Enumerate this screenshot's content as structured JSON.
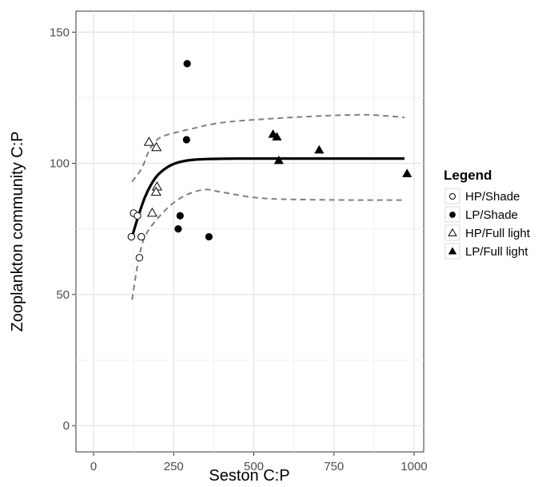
{
  "chart_data": {
    "type": "scatter",
    "xlabel": "Seston C:P",
    "ylabel": "Zooplankton community C:P",
    "xlim": [
      -55,
      1030
    ],
    "ylim": [
      -10,
      158
    ],
    "xticks": [
      0,
      250,
      500,
      750,
      1000
    ],
    "yticks": [
      0,
      50,
      100,
      150
    ],
    "grid": true,
    "legend": {
      "title": "Legend",
      "placement": "right",
      "entries": [
        {
          "label": "HP/Shade",
          "marker": "circle-open"
        },
        {
          "label": "LP/Shade",
          "marker": "circle-filled"
        },
        {
          "label": "HP/Full light",
          "marker": "triangle-open"
        },
        {
          "label": "LP/Full light",
          "marker": "triangle-filled"
        }
      ]
    },
    "series": [
      {
        "name": "HP/Shade",
        "marker": "circle-open",
        "points": [
          [
            118,
            72
          ],
          [
            125,
            81
          ],
          [
            137,
            80
          ],
          [
            143,
            64
          ],
          [
            149,
            72
          ]
        ]
      },
      {
        "name": "LP/Shade",
        "marker": "circle-filled",
        "points": [
          [
            292,
            138
          ],
          [
            290,
            109
          ],
          [
            270,
            80
          ],
          [
            264,
            75
          ],
          [
            360,
            72
          ]
        ]
      },
      {
        "name": "HP/Full light",
        "marker": "triangle-open",
        "points": [
          [
            173,
            108
          ],
          [
            196,
            106
          ],
          [
            198,
            91
          ],
          [
            195,
            89
          ],
          [
            183,
            81
          ]
        ]
      },
      {
        "name": "LP/Full light",
        "marker": "triangle-filled",
        "points": [
          [
            560,
            111
          ],
          [
            572,
            110
          ],
          [
            578,
            101
          ],
          [
            704,
            105
          ],
          [
            978,
            96
          ]
        ]
      }
    ],
    "fit_line": {
      "style": "solid",
      "color": "#000000",
      "points": [
        [
          120,
          72
        ],
        [
          140,
          80
        ],
        [
          160,
          87
        ],
        [
          180,
          92
        ],
        [
          200,
          95.5
        ],
        [
          230,
          98.5
        ],
        [
          260,
          100.2
        ],
        [
          300,
          101.2
        ],
        [
          350,
          101.6
        ],
        [
          450,
          101.8
        ],
        [
          600,
          101.8
        ],
        [
          800,
          101.8
        ],
        [
          970,
          101.8
        ]
      ]
    },
    "confidence_band": {
      "style": "dashed",
      "color": "#808080",
      "upper": [
        [
          120,
          93
        ],
        [
          150,
          98
        ],
        [
          170,
          104
        ],
        [
          190,
          108
        ],
        [
          220,
          110.5
        ],
        [
          300,
          113
        ],
        [
          400,
          115.5
        ],
        [
          550,
          117
        ],
        [
          700,
          118
        ],
        [
          850,
          118.5
        ],
        [
          970,
          117.5
        ]
      ],
      "lower": [
        [
          120,
          48
        ],
        [
          140,
          63
        ],
        [
          160,
          72
        ],
        [
          200,
          79
        ],
        [
          250,
          85
        ],
        [
          300,
          88.5
        ],
        [
          350,
          90
        ],
        [
          400,
          89
        ],
        [
          500,
          87
        ],
        [
          600,
          86.3
        ],
        [
          800,
          86
        ],
        [
          970,
          86
        ]
      ]
    }
  }
}
